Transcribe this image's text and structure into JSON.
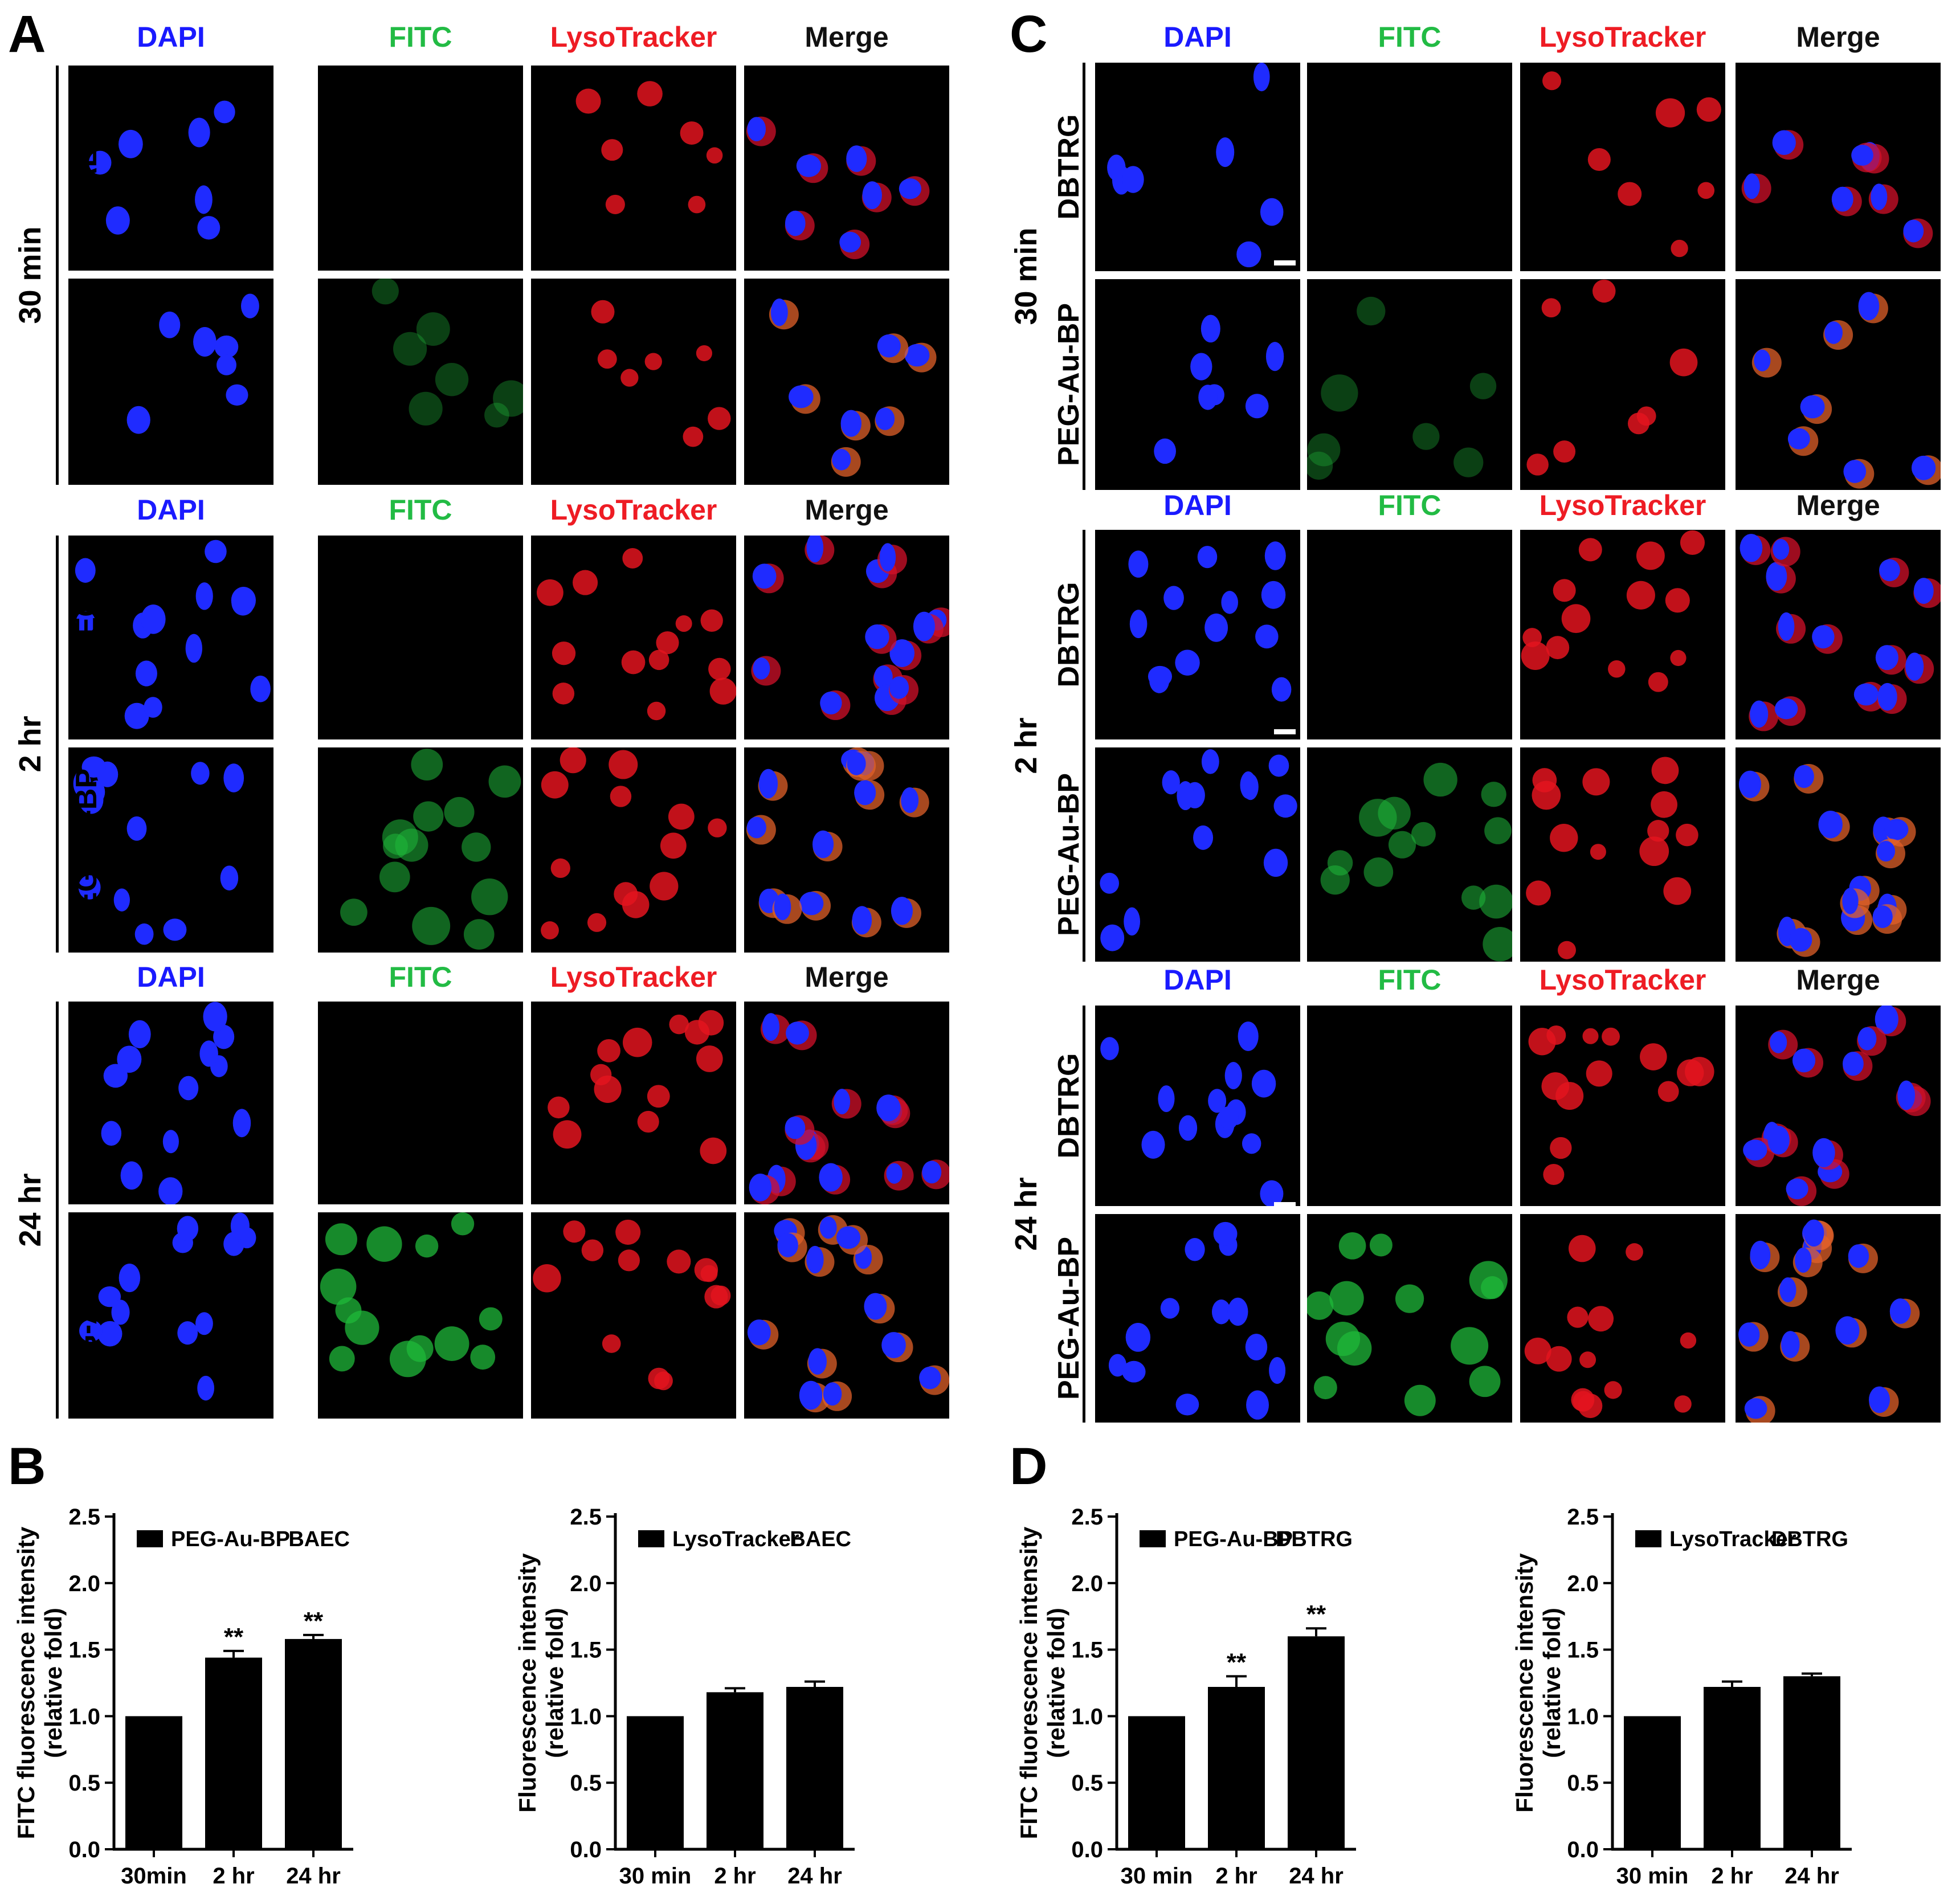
{
  "panels": {
    "A": "A",
    "B": "B",
    "C": "C",
    "D": "D"
  },
  "channels": [
    "DAPI",
    "FITC",
    "LysoTracker",
    "Merge"
  ],
  "rows": {
    "ctrl_left": "BAEC",
    "ctrl_right": "DBTRG",
    "treated": "PEG-Au-BP"
  },
  "times": [
    "30 min",
    "2 hr",
    "24 hr"
  ],
  "colors": {
    "dapi": "#1a1aff",
    "fitc": "#22bb44",
    "lyso": "#ee1c24",
    "merge": "#111111",
    "bar": "#000000"
  },
  "chart_data": [
    {
      "type": "bar",
      "panel": "B",
      "legend": "PEG-Au-BP",
      "cell": "BAEC",
      "ylabel": "FITC fluorescence intensity\n(relative fold)",
      "categories": [
        "30min",
        "2 hr",
        "24 hr"
      ],
      "values": [
        1.0,
        1.44,
        1.58
      ],
      "errors": [
        0,
        0.05,
        0.03
      ],
      "sig": [
        "",
        "**",
        "**"
      ],
      "ylim": [
        0,
        2.5
      ],
      "yticks": [
        "0.0",
        "0.5",
        "1.0",
        "1.5",
        "2.0",
        "2.5"
      ]
    },
    {
      "type": "bar",
      "panel": "B",
      "legend": "LysoTracker",
      "cell": "BAEC",
      "ylabel": "Fluorescence intensity\n(relative fold)",
      "categories": [
        "30 min",
        "2 hr",
        "24 hr"
      ],
      "values": [
        1.0,
        1.18,
        1.22
      ],
      "errors": [
        0,
        0.03,
        0.04
      ],
      "sig": [
        "",
        "",
        ""
      ],
      "ylim": [
        0,
        2.5
      ],
      "yticks": [
        "0.0",
        "0.5",
        "1.0",
        "1.5",
        "2.0",
        "2.5"
      ]
    },
    {
      "type": "bar",
      "panel": "D",
      "legend": "PEG-Au-BP",
      "cell": "DBTRG",
      "ylabel": "FITC fluorescence intensity\n(relative fold)",
      "categories": [
        "30 min",
        "2 hr",
        "24 hr"
      ],
      "values": [
        1.0,
        1.22,
        1.6
      ],
      "errors": [
        0,
        0.08,
        0.06
      ],
      "sig": [
        "",
        "**",
        "**"
      ],
      "ylim": [
        0,
        2.5
      ],
      "yticks": [
        "0.0",
        "0.5",
        "1.0",
        "1.5",
        "2.0",
        "2.5"
      ]
    },
    {
      "type": "bar",
      "panel": "D",
      "legend": "LysoTracker",
      "cell": "DBTRG",
      "ylabel": "Fluorescence intensity\n(relative fold)",
      "categories": [
        "30 min",
        "2 hr",
        "24 hr"
      ],
      "values": [
        1.0,
        1.22,
        1.3
      ],
      "errors": [
        0,
        0.04,
        0.02
      ],
      "sig": [
        "",
        "",
        ""
      ],
      "ylim": [
        0,
        2.5
      ],
      "yticks": [
        "0.0",
        "0.5",
        "1.0",
        "1.5",
        "2.0",
        "2.5"
      ]
    }
  ]
}
